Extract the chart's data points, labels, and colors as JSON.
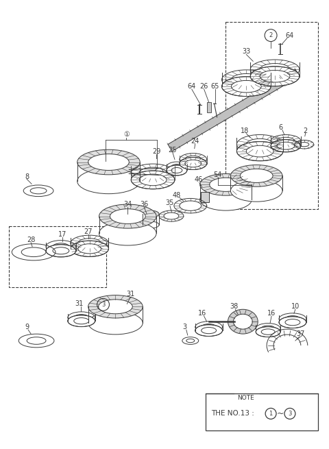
{
  "bg_color": "#ffffff",
  "lc": "#3a3a3a",
  "fig_w": 4.8,
  "fig_h": 6.55,
  "dpi": 100
}
